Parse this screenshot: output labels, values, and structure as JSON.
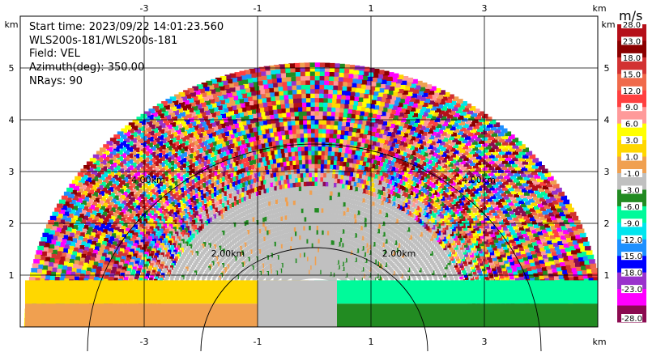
{
  "info": {
    "start_time": "Start time: 2023/09/22 14:01:23.560",
    "station": "WLS200s-181/WLS200s-181",
    "field": "Field: VEL",
    "azimuth": "Azimuth(deg): 350.00",
    "nrays": "NRays: 90"
  },
  "colorbar": {
    "unit": "m/s",
    "levels": [
      {
        "label": "28.0",
        "color": "#b50f19"
      },
      {
        "label": "23.0",
        "color": "#8b0000"
      },
      {
        "label": "18.0",
        "color": "#d23232"
      },
      {
        "label": "15.0",
        "color": "#f06a4b"
      },
      {
        "label": "12.0",
        "color": "#ff4040"
      },
      {
        "label": "9.0",
        "color": "#ff9a9a"
      },
      {
        "label": "6.0",
        "color": "#ffff00"
      },
      {
        "label": "3.0",
        "color": "#ffd700"
      },
      {
        "label": "1.0",
        "color": "#f0a050"
      },
      {
        "label": "-1.0",
        "color": "#c0c0c0"
      },
      {
        "label": "-3.0",
        "color": "#228b22"
      },
      {
        "label": "-6.0",
        "color": "#00fa9a"
      },
      {
        "label": "-9.0",
        "color": "#00e5ee"
      },
      {
        "label": "-12.0",
        "color": "#1e90ff"
      },
      {
        "label": "-15.0",
        "color": "#0000ff"
      },
      {
        "label": "-18.0",
        "color": "#9932cc"
      },
      {
        "label": "-23.0",
        "color": "#ff00ff"
      },
      {
        "label": "-28.0",
        "color": "#8b0a50"
      }
    ]
  },
  "chart_data": {
    "type": "heatmap",
    "subtype": "ppi-half-disk",
    "x_unit": "km",
    "y_unit": "km",
    "x_ticks": [
      -3,
      -1,
      1,
      3
    ],
    "y_ticks": [
      1,
      2,
      3,
      4,
      5
    ],
    "xlim": [
      -5.9,
      5.3
    ],
    "ylim": [
      0,
      5.95
    ],
    "max_range_km": 5.1,
    "range_rings_km": [
      2.0,
      4.0
    ],
    "ring_labels": [
      "2.00km",
      "4.00km"
    ],
    "clear_region_km": 2.7,
    "near_bands": [
      {
        "side": "left",
        "y_range": [
          0,
          0.45
        ],
        "color": "#f0a050"
      },
      {
        "side": "left",
        "y_range": [
          0.45,
          0.9
        ],
        "color": "#ffd700"
      },
      {
        "side": "right",
        "y_range": [
          0,
          0.45
        ],
        "color": "#228b22"
      },
      {
        "side": "right",
        "y_range": [
          0.45,
          0.9
        ],
        "color": "#00fa9a"
      }
    ],
    "grid": true
  }
}
